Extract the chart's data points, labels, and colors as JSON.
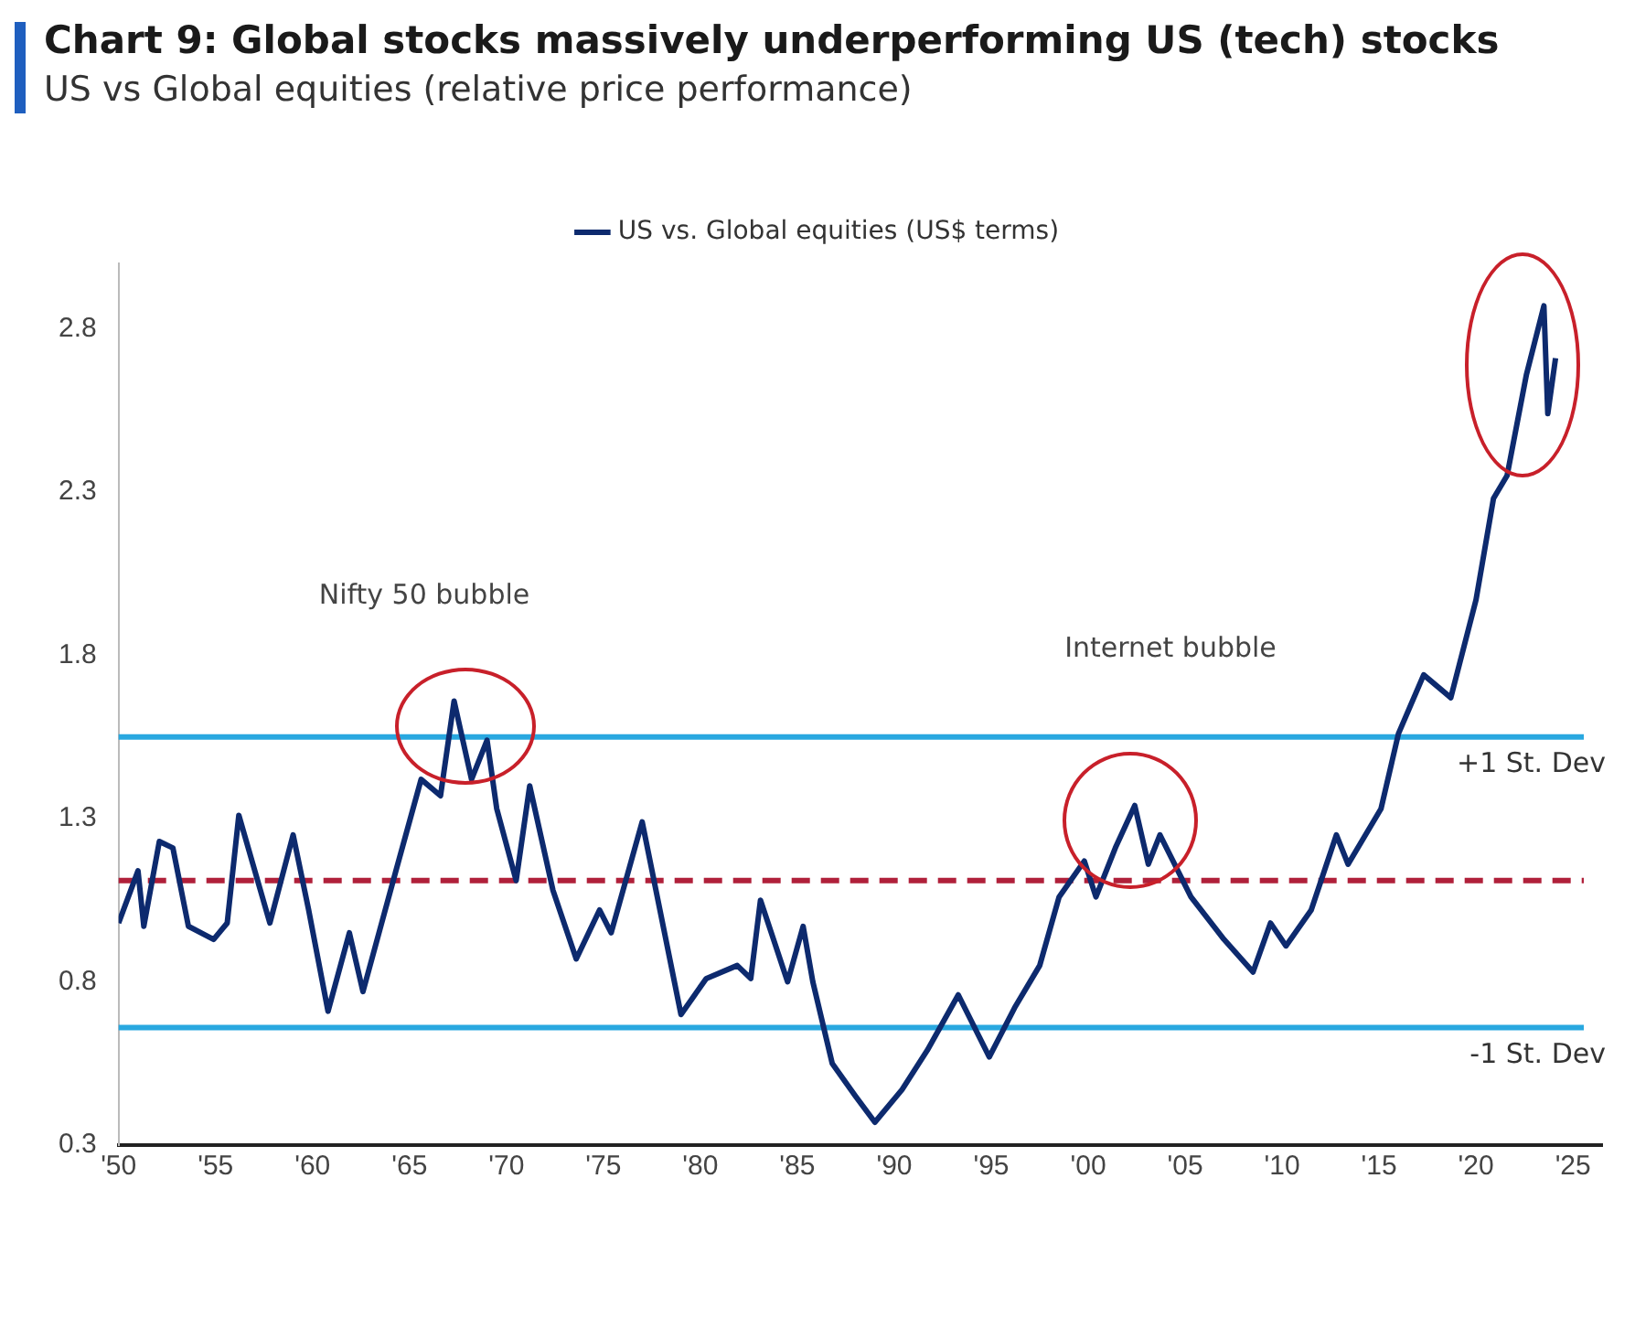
{
  "chart_data": {
    "type": "line",
    "title": "Chart 9: Global stocks massively underperforming US (tech) stocks",
    "subtitle": "US vs Global equities (relative price performance)",
    "series": [
      {
        "name": "US vs. Global equities (US$ terms)",
        "color": "#0d2a6e",
        "x": [
          1950.0,
          1951.0,
          1951.3,
          1952.1,
          1952.8,
          1953.6,
          1954.9,
          1955.6,
          1956.2,
          1957.8,
          1959.0,
          1959.8,
          1960.8,
          1961.9,
          1962.6,
          1964.3,
          1965.6,
          1966.6,
          1967.3,
          1968.2,
          1969.0,
          1969.5,
          1970.5,
          1971.2,
          1972.4,
          1973.6,
          1974.8,
          1975.4,
          1977.0,
          1979.0,
          1980.3,
          1981.9,
          1982.6,
          1983.1,
          1984.5,
          1985.3,
          1985.8,
          1986.8,
          1988.0,
          1989.0,
          1990.4,
          1991.7,
          1993.3,
          1994.9,
          1996.2,
          1997.5,
          1998.5,
          1999.8,
          2000.4,
          2001.4,
          2002.4,
          2003.1,
          2003.7,
          2005.3,
          2007.0,
          2008.5,
          2009.4,
          2010.2,
          2011.5,
          2012.8,
          2013.4,
          2015.1,
          2016.0,
          2017.3,
          2018.7,
          2020.0,
          2020.9,
          2021.6,
          2022.6,
          2023.5,
          2023.7,
          2024.1
        ],
        "values": [
          0.98,
          1.14,
          0.97,
          1.23,
          1.21,
          0.97,
          0.93,
          0.98,
          1.31,
          0.98,
          1.25,
          1.02,
          0.71,
          0.95,
          0.77,
          1.14,
          1.42,
          1.37,
          1.66,
          1.42,
          1.54,
          1.33,
          1.11,
          1.4,
          1.08,
          0.87,
          1.02,
          0.95,
          1.29,
          0.7,
          0.81,
          0.85,
          0.81,
          1.05,
          0.8,
          0.97,
          0.8,
          0.55,
          0.45,
          0.37,
          0.47,
          0.59,
          0.76,
          0.57,
          0.72,
          0.85,
          1.06,
          1.17,
          1.06,
          1.21,
          1.34,
          1.16,
          1.25,
          1.06,
          0.93,
          0.83,
          0.98,
          0.91,
          1.02,
          1.25,
          1.16,
          1.33,
          1.56,
          1.74,
          1.67,
          1.97,
          2.28,
          2.35,
          2.66,
          2.87,
          2.54,
          2.71
        ]
      }
    ],
    "xlim": [
      1950,
      2026.5
    ],
    "xticks": [
      {
        "value": 1950,
        "label": "'50"
      },
      {
        "value": 1955,
        "label": "'55"
      },
      {
        "value": 1960,
        "label": "'60"
      },
      {
        "value": 1965,
        "label": "'65"
      },
      {
        "value": 1970,
        "label": "'70"
      },
      {
        "value": 1975,
        "label": "'75"
      },
      {
        "value": 1980,
        "label": "'80"
      },
      {
        "value": 1985,
        "label": "'85"
      },
      {
        "value": 1990,
        "label": "'90"
      },
      {
        "value": 1995,
        "label": "'95"
      },
      {
        "value": 2000,
        "label": "'00"
      },
      {
        "value": 2005,
        "label": "'05"
      },
      {
        "value": 2010,
        "label": "'10"
      },
      {
        "value": 2015,
        "label": "'15"
      },
      {
        "value": 2020,
        "label": "'20"
      },
      {
        "value": 2025,
        "label": "'25"
      }
    ],
    "ylim": [
      0.3,
      3.0
    ],
    "yticks": [
      0.3,
      0.8,
      1.3,
      1.8,
      2.3,
      2.8
    ],
    "grid": false,
    "legend": "top",
    "marker": "none",
    "line_style": "solid",
    "ref_lines": [
      {
        "axis": "y",
        "value": 1.55,
        "label": "+1 St. Dev",
        "color": "#29a8e0",
        "line_style": "solid"
      },
      {
        "axis": "y",
        "value": 1.11,
        "label": null,
        "color": "#b0203a",
        "line_style": "dashed"
      },
      {
        "axis": "y",
        "value": 0.66,
        "label": "-1 St. Dev",
        "color": "#29a8e0",
        "line_style": "solid"
      }
    ],
    "annotations": [
      "Nifty 50 bubble",
      "Internet bubble"
    ]
  }
}
